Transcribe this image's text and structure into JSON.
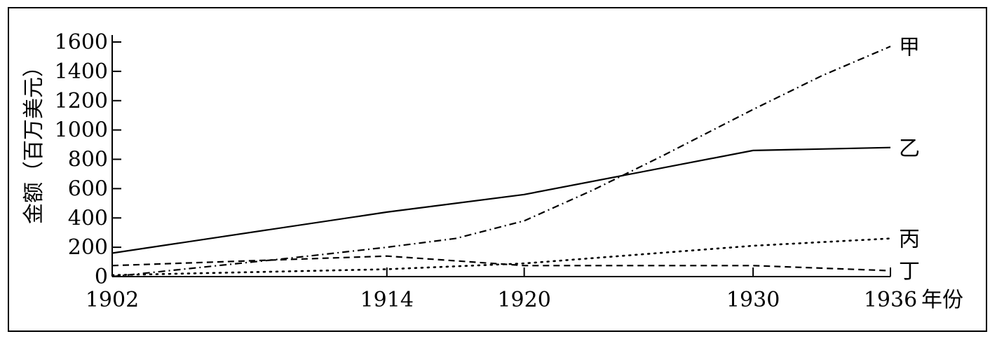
{
  "chart_data": {
    "type": "line",
    "title": "",
    "xlabel": "年份",
    "ylabel": "金额（百万美元）",
    "x": [
      1902,
      1914,
      1920,
      1930,
      1936
    ],
    "xlim": [
      1902,
      1936
    ],
    "ylim": [
      0,
      1600
    ],
    "y_ticks": [
      0,
      200,
      400,
      600,
      800,
      1000,
      1200,
      1400,
      1600
    ],
    "y_tick_labels": [
      "0",
      "200",
      "400",
      "600",
      "800",
      "1000",
      "1200",
      "1400",
      "1600"
    ],
    "x_tick_labels": [
      "1902",
      "1914",
      "1920",
      "1930",
      "1936"
    ],
    "grid": false,
    "series": [
      {
        "name": "甲",
        "style": "dashdot",
        "points": [
          [
            1902,
            0
          ],
          [
            1910,
            130
          ],
          [
            1914,
            200
          ],
          [
            1917,
            260
          ],
          [
            1920,
            380
          ],
          [
            1923,
            590
          ],
          [
            1926,
            820
          ],
          [
            1930,
            1140
          ],
          [
            1933,
            1370
          ],
          [
            1936,
            1570
          ]
        ]
      },
      {
        "name": "乙",
        "style": "solid",
        "points": [
          [
            1902,
            160
          ],
          [
            1914,
            440
          ],
          [
            1920,
            560
          ],
          [
            1930,
            860
          ],
          [
            1936,
            880
          ]
        ]
      },
      {
        "name": "丙",
        "style": "dotted",
        "points": [
          [
            1902,
            10
          ],
          [
            1914,
            50
          ],
          [
            1920,
            90
          ],
          [
            1930,
            210
          ],
          [
            1936,
            260
          ]
        ]
      },
      {
        "name": "丁",
        "style": "dashed",
        "points": [
          [
            1902,
            75
          ],
          [
            1914,
            140
          ],
          [
            1920,
            75
          ],
          [
            1930,
            75
          ],
          [
            1936,
            40
          ]
        ]
      }
    ]
  }
}
